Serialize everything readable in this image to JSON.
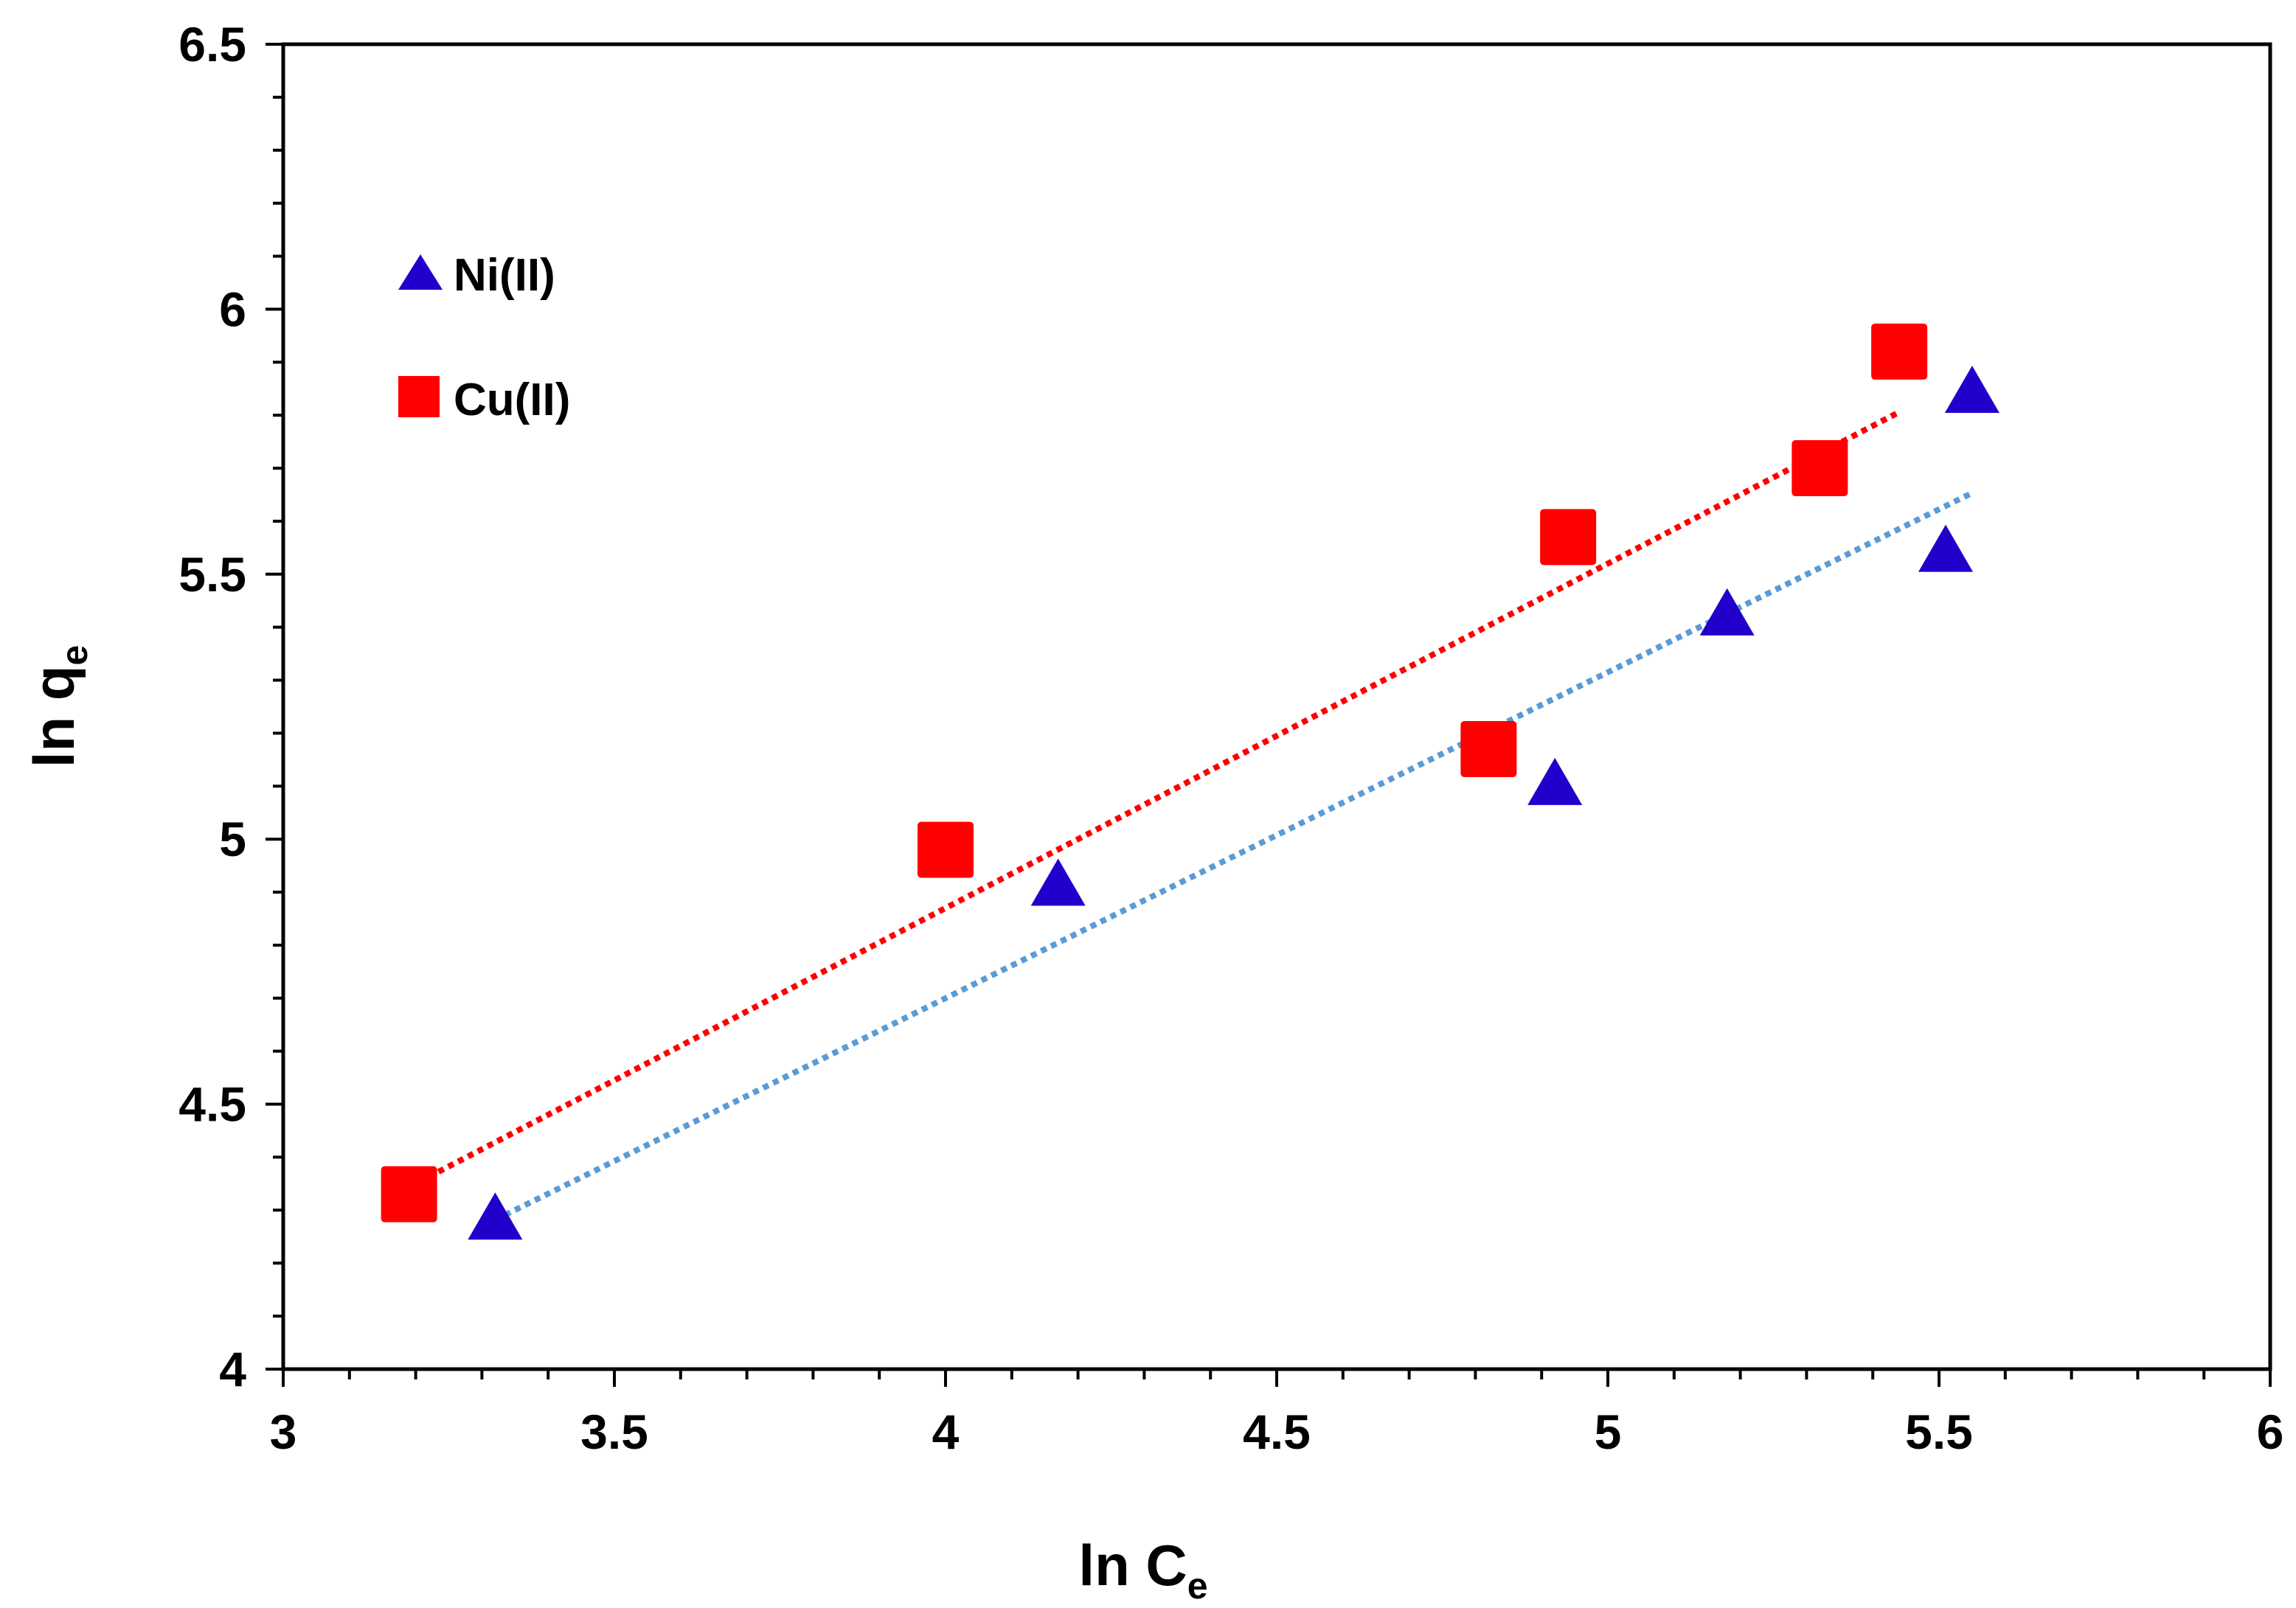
{
  "chart_data": {
    "type": "scatter",
    "title": "",
    "xlabel": {
      "main": "ln C",
      "sub": "e"
    },
    "ylabel": {
      "main": "ln q",
      "sub": "e"
    },
    "xlim": [
      3,
      6
    ],
    "ylim": [
      4,
      6.5
    ],
    "x_ticks": [
      "3",
      "3.5",
      "4",
      "4.5",
      "5",
      "5.5",
      "6"
    ],
    "y_ticks": [
      "4",
      "4.5",
      "5",
      "5.5",
      "6",
      "6.5"
    ],
    "x_minor_step": 0.1,
    "y_minor_step": 0.1,
    "grid": false,
    "legend_position": "top-left",
    "series": [
      {
        "name": "Ni(II)",
        "marker": "triangle",
        "color": "#2200cc",
        "trend_color": "#5b9bd5",
        "x": [
          3.32,
          4.17,
          4.92,
          5.18,
          5.51,
          5.55
        ],
        "y": [
          4.28,
          4.91,
          5.1,
          5.42,
          5.54,
          5.84
        ],
        "trendline": {
          "x_start": 3.32,
          "x_end": 5.55,
          "slope": 0.615,
          "intercept": 2.24
        }
      },
      {
        "name": "Cu(II)",
        "marker": "square",
        "color": "#ff0000",
        "trend_color": "#ff0000",
        "x": [
          3.19,
          4.0,
          4.82,
          4.94,
          5.32,
          5.44
        ],
        "y": [
          4.33,
          4.98,
          5.17,
          5.57,
          5.7,
          5.92
        ],
        "trendline": {
          "x_start": 3.19,
          "x_end": 5.44,
          "slope": 0.65,
          "intercept": 2.27
        }
      }
    ]
  }
}
